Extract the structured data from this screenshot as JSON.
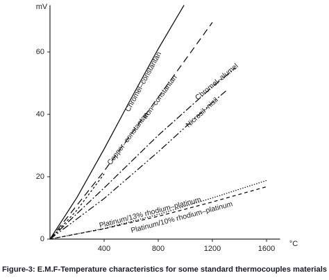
{
  "chart_data": {
    "type": "line",
    "caption": "Figure-3: E.M.F-Temperature characteristics for some standard thermocouples materials",
    "y_label": "mV",
    "x_label": "°C",
    "xlim": [
      0,
      1700
    ],
    "ylim": [
      0,
      75
    ],
    "xticks": [
      400,
      800,
      1200,
      1600
    ],
    "yticks": [
      0,
      20,
      40,
      60
    ],
    "series": [
      {
        "name": "Chromel–constantan",
        "color": "#111111",
        "dash": "solid",
        "x": [
          0,
          200,
          400,
          600,
          800,
          990
        ],
        "values": [
          0,
          13.4,
          28.9,
          45.1,
          61.0,
          75
        ]
      },
      {
        "name": "Iron–constantan",
        "color": "#111111",
        "dash": "dashed",
        "x": [
          0,
          400,
          800,
          1200
        ],
        "values": [
          0,
          21.8,
          45.5,
          69.5
        ]
      },
      {
        "name": "Copper–constantan",
        "color": "#111111",
        "dash": "dotted",
        "x": [
          0,
          200,
          400
        ],
        "values": [
          0,
          9.3,
          20.9
        ]
      },
      {
        "name": "Chromel–alumel",
        "color": "#111111",
        "dash": "dashdot",
        "x": [
          0,
          400,
          800,
          1200,
          1370
        ],
        "values": [
          0,
          16.4,
          33.3,
          48.8,
          54.9
        ]
      },
      {
        "name": "Nicrosil–nisil",
        "color": "#111111",
        "dash": "dashdotdot",
        "x": [
          0,
          400,
          800,
          1200,
          1300
        ],
        "values": [
          0,
          13.0,
          28.0,
          43.8,
          47.5
        ]
      },
      {
        "name": "Platinum/13% rhodium–platinum",
        "color": "#111111",
        "dash": "finedot",
        "x": [
          0,
          400,
          800,
          1200,
          1600
        ],
        "values": [
          0,
          3.4,
          7.9,
          13.2,
          18.8
        ]
      },
      {
        "name": "Platinum/10% rhodium–platinum",
        "color": "#111111",
        "dash": "shortdash",
        "x": [
          0,
          400,
          800,
          1200,
          1600
        ],
        "values": [
          0,
          3.3,
          7.3,
          11.9,
          16.8
        ]
      }
    ]
  }
}
